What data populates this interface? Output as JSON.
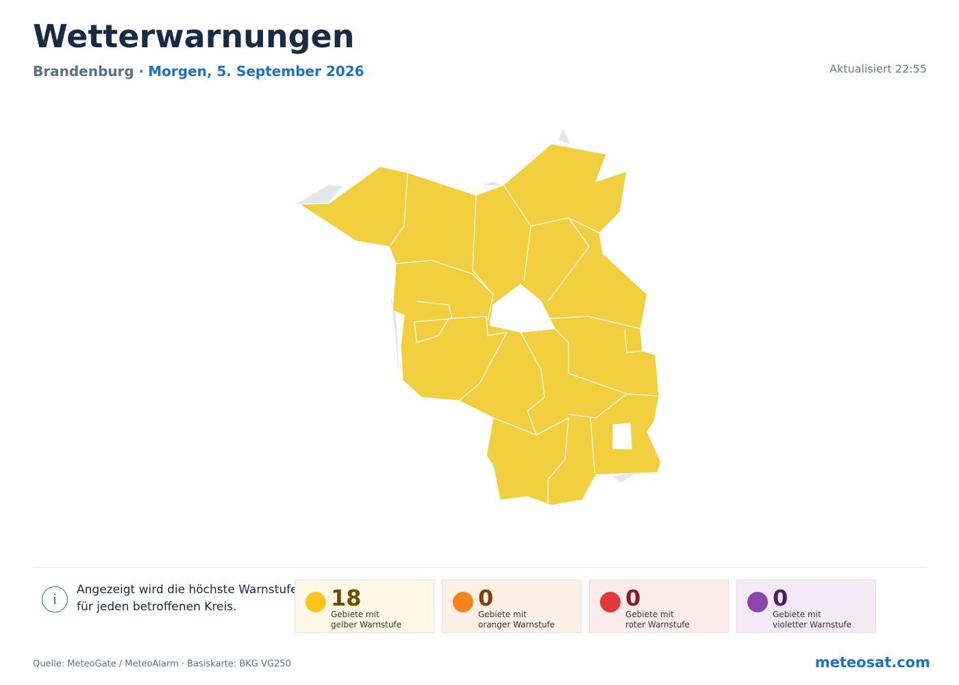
{
  "header": {
    "title": "Wetterwarnungen",
    "region": "Brandenburg",
    "separator": "·",
    "date": "Morgen, 5. September 2026",
    "updated": "Aktualisiert 22:55"
  },
  "info": {
    "icon": "i",
    "text": "Angezeigt wird die höchste Warnstufe für jeden betroffenen Kreis."
  },
  "summary": [
    {
      "count": 18,
      "line1": "Gebiete mit",
      "line2": "gelber Warnstufe",
      "color": "#fbc51d",
      "background": "#fff8e6",
      "count_color": "#6b4f00"
    },
    {
      "count": 0,
      "line1": "Gebiete mit",
      "line2": "oranger Warnstufe",
      "color": "#f5831f",
      "background": "#fdf1e7",
      "count_color": "#8a3d00"
    },
    {
      "count": 0,
      "line1": "Gebiete mit",
      "line2": "roter Warnstufe",
      "color": "#e3393a",
      "background": "#fcebeb",
      "count_color": "#8b1a1a"
    },
    {
      "count": 0,
      "line1": "Gebiete mit",
      "line2": "violetter Warnstufe",
      "color": "#8e44ad",
      "background": "#f3eaf6",
      "count_color": "#4a1f5c"
    }
  ],
  "footer": {
    "source": "Quelle: MeteoGate / MeteoAlarm · Basiskarte: BKG VG250",
    "brand": "meteosat.com"
  }
}
